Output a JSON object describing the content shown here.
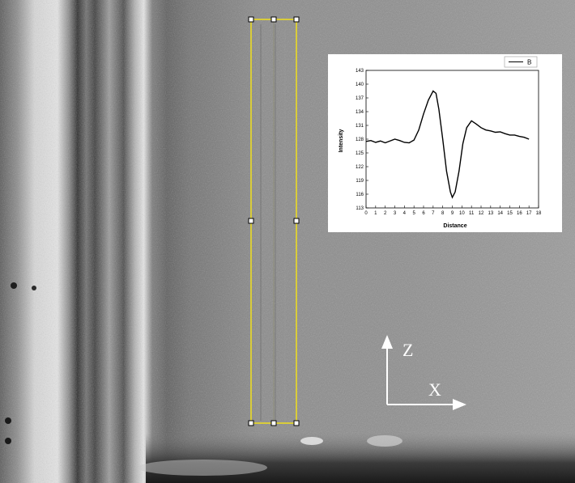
{
  "colors": {
    "roi": "#d9cc3a",
    "handle_fill": "#ffffff",
    "handle_stroke": "#000000",
    "curve": "#000000",
    "axes_arrow": "#ffffff",
    "inset_bg": "#ffffff"
  },
  "annotations": {
    "z_label": "Z",
    "x_label": "X"
  },
  "chart_data": {
    "type": "line",
    "title": "",
    "xlabel": "Distance",
    "ylabel": "Intensity",
    "xlim": [
      0,
      18
    ],
    "ylim": [
      113,
      143
    ],
    "x_ticks": [
      0,
      1,
      2,
      3,
      4,
      5,
      6,
      7,
      8,
      9,
      10,
      11,
      12,
      13,
      14,
      15,
      16,
      17,
      18
    ],
    "y_ticks": [
      113,
      116,
      119,
      122,
      125,
      128,
      131,
      134,
      137,
      140,
      143
    ],
    "grid": false,
    "legend_position": "top-right",
    "series": [
      {
        "name": "B",
        "x": [
          0,
          0.5,
          1,
          1.5,
          2,
          2.5,
          3,
          3.5,
          4,
          4.5,
          5,
          5.5,
          6,
          6.5,
          7,
          7.3,
          7.6,
          8,
          8.4,
          8.8,
          9.0,
          9.3,
          9.7,
          10.1,
          10.5,
          11,
          11.5,
          12,
          12.5,
          13,
          13.5,
          14,
          14.5,
          15,
          15.5,
          16,
          16.5,
          17
        ],
        "values": [
          127.5,
          127.7,
          127.3,
          127.6,
          127.2,
          127.6,
          128.0,
          127.7,
          127.3,
          127.2,
          127.8,
          130.0,
          133.5,
          136.5,
          138.5,
          138.0,
          134.5,
          128.0,
          121.0,
          116.5,
          115.3,
          116.5,
          121.0,
          127.0,
          130.5,
          132.0,
          131.3,
          130.5,
          130.0,
          129.8,
          129.5,
          129.6,
          129.2,
          128.9,
          128.9,
          128.6,
          128.4,
          128.0
        ]
      }
    ]
  }
}
